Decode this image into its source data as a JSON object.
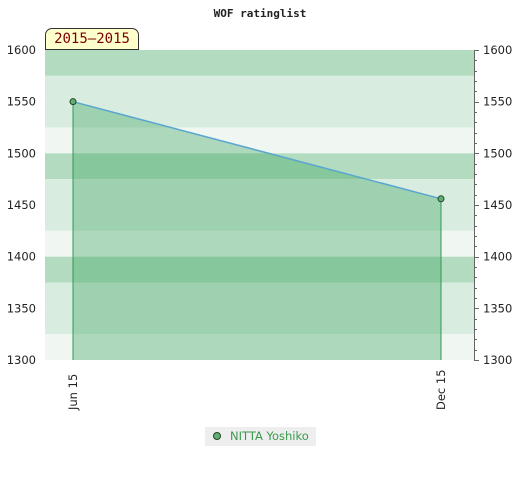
{
  "chart_data": {
    "type": "area",
    "title": "WOF ratinglist",
    "range_label": "2015–2015",
    "categories": [
      "Jun 15",
      "Dec 15"
    ],
    "series": [
      {
        "name": "NITTA Yoshiko",
        "values": [
          1550,
          1456
        ]
      }
    ],
    "ylim": [
      1300,
      1600
    ],
    "yticks": [
      1300,
      1350,
      1400,
      1450,
      1500,
      1550,
      1600
    ],
    "grid": true,
    "legend_position": "bottom",
    "colors": {
      "line": "#5aa6cf",
      "fill": "#3fa661",
      "marker": "#5fb077",
      "band_a": "#b2dbbf",
      "band_b": "#d8ecdf",
      "band_c": "#f0f7f2"
    }
  }
}
